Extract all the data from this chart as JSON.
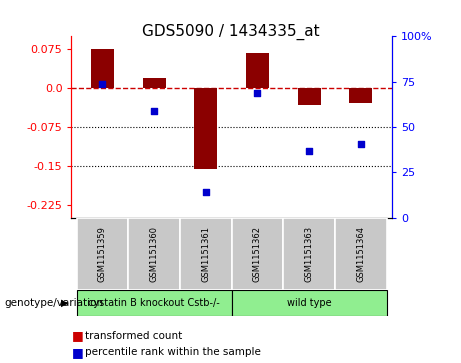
{
  "title": "GDS5090 / 1434335_at",
  "categories": [
    "GSM1151359",
    "GSM1151360",
    "GSM1151361",
    "GSM1151362",
    "GSM1151363",
    "GSM1151364"
  ],
  "bar_values": [
    0.075,
    0.02,
    -0.155,
    0.068,
    -0.033,
    -0.028
  ],
  "scatter_values": [
    0.008,
    -0.045,
    -0.2,
    -0.01,
    -0.122,
    -0.108
  ],
  "bar_color": "#8B0000",
  "scatter_color": "#0000CD",
  "group_labels": [
    "cystatin B knockout Cstb-/-",
    "wild type"
  ],
  "group_ranges": [
    [
      0,
      3
    ],
    [
      3,
      6
    ]
  ],
  "group_colors": [
    "#90EE90",
    "#90EE90"
  ],
  "group_label": "genotype/variation",
  "ylim": [
    -0.25,
    0.1
  ],
  "yticks_left": [
    0.075,
    0.0,
    -0.075,
    -0.15,
    -0.225
  ],
  "yticks_right": [
    100,
    75,
    50,
    25,
    0
  ],
  "hline_y": 0,
  "dotted_lines": [
    -0.075,
    -0.15
  ],
  "legend_items": [
    "transformed count",
    "percentile rank within the sample"
  ],
  "bar_color_legend": "#CC0000",
  "scatter_color_legend": "#0000CC",
  "label_box_color": "#C8C8C8",
  "title_fontsize": 11,
  "tick_fontsize": 8,
  "cat_fontsize": 6,
  "group_fontsize": 7,
  "legend_fontsize": 7.5
}
